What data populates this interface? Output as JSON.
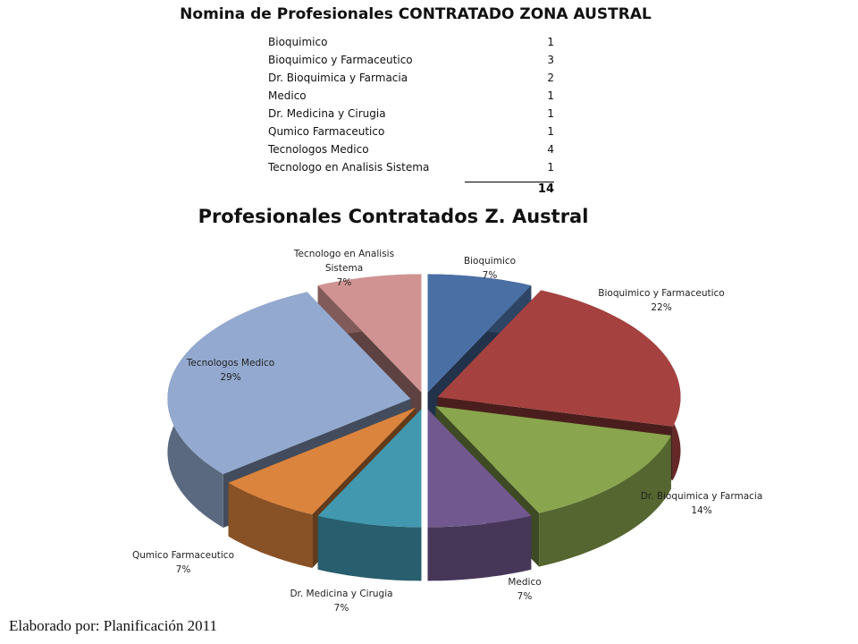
{
  "title": "Nomina de Profesionales CONTRATADO ZONA AUSTRAL",
  "table": {
    "rows": [
      [
        "Bioquimico",
        1
      ],
      [
        "Bioquimico y Farmaceutico",
        3
      ],
      [
        "Dr. Bioquimica y Farmacia",
        2
      ],
      [
        "Medico",
        1
      ],
      [
        "Dr. Medicina y  Cirugia",
        1
      ],
      [
        "Qumico Farmaceutico",
        1
      ],
      [
        "Tecnologos Medico",
        4
      ],
      [
        "Tecnologo en Analisis Sistema",
        1
      ]
    ],
    "total": 14
  },
  "chart_data": {
    "type": "pie",
    "title": "Profesionales Contratados Z. Austral",
    "categories": [
      "Bioquimico",
      "Bioquimico y Farmaceutico",
      "Dr. Bioquimica y Farmacia",
      "Medico",
      "Dr. Medicina y  Cirugia",
      "Qumico Farmaceutico",
      "Tecnologos Medico",
      "Tecnologo en Analisis Sistema"
    ],
    "values": [
      7,
      22,
      14,
      7,
      7,
      7,
      29,
      7
    ],
    "value_labels": [
      "7%",
      "22%",
      "14%",
      "7%",
      "7%",
      "7%",
      "29%",
      "7%"
    ],
    "colors": [
      "#4a6fa5",
      "#a5423f",
      "#89a54e",
      "#71588f",
      "#4198af",
      "#db843d",
      "#93a9cf",
      "#d09391"
    ],
    "three_d": true,
    "exploded": true
  },
  "footer": "Elaborado por: Planificación 2011"
}
